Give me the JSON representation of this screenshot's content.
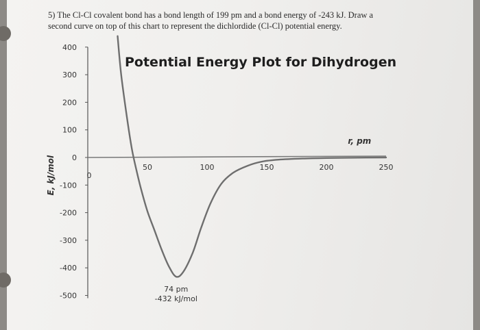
{
  "question": {
    "line1": "5) The Cl-Cl covalent bond has a bond length of 199 pm and a bond energy of -243 kJ. Draw a",
    "line2": "second curve on top of this chart to represent the dichlordide (Cl-Cl) potential energy."
  },
  "chart_data": {
    "type": "line",
    "title": "Potential Energy Plot for Dihydrogen",
    "xlabel": "r, pm",
    "ylabel": "E, kJ/mol",
    "xlim": [
      0,
      250
    ],
    "ylim": [
      -500,
      400
    ],
    "x_ticks": [
      "50",
      "100",
      "150",
      "200",
      "250"
    ],
    "y_ticks": [
      "400",
      "300",
      "200",
      "100",
      "0",
      "-100",
      "-200",
      "-300",
      "-400",
      "-500"
    ],
    "origin_label": "0",
    "grid": false,
    "series": [
      {
        "color": "#6e6e6e",
        "x": [
          25,
          28,
          33,
          37,
          41,
          45,
          50,
          56,
          62,
          68,
          74,
          80,
          88,
          95,
          103,
          112,
          122,
          134,
          146,
          160,
          180,
          200,
          220,
          250
        ],
        "y": [
          440,
          300,
          140,
          30,
          -50,
          -120,
          -195,
          -265,
          -335,
          -395,
          -432,
          -415,
          -345,
          -255,
          -165,
          -95,
          -55,
          -30,
          -15,
          -8,
          -4,
          -2,
          -1,
          0
        ]
      }
    ],
    "annotations": [
      {
        "label": "74 pm",
        "x": 74,
        "y": -432
      },
      {
        "label": "-432 kJ/mol",
        "x": 74,
        "y": -432
      }
    ]
  }
}
